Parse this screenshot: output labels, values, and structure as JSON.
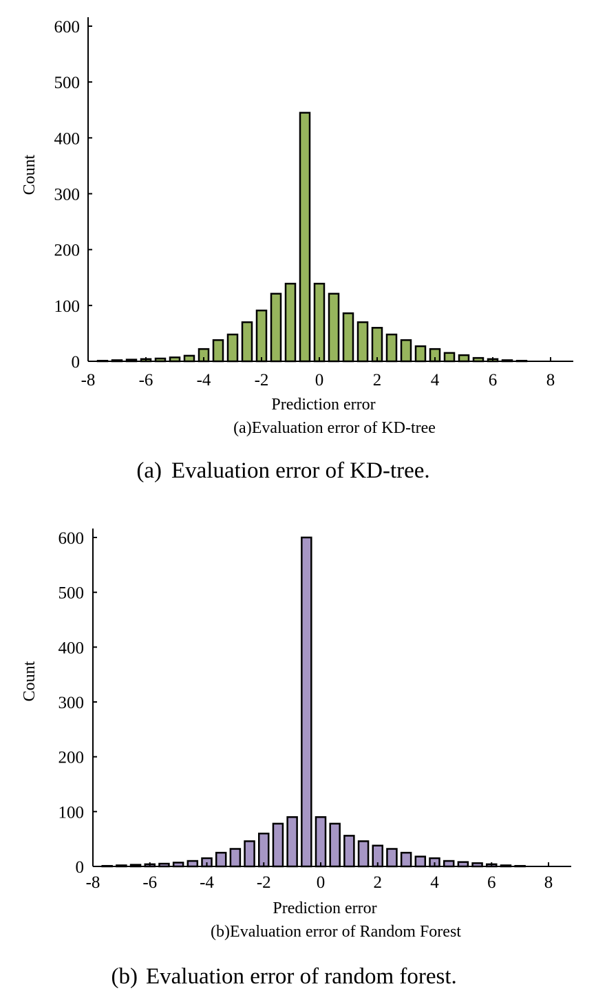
{
  "chart_data": [
    {
      "type": "bar",
      "caption": "(a)Evaluation error of KD-tree",
      "figure_caption": {
        "tag": "(a)",
        "text": "Evaluation error of KD-tree."
      },
      "xlabel": "Prediction error",
      "ylabel": "Count",
      "xlim": [
        -8,
        8
      ],
      "ylim": [
        0,
        600
      ],
      "xticks": [
        "-8",
        "-6",
        "-4",
        "-2",
        "0",
        "2",
        "4",
        "6",
        "8"
      ],
      "yticks": [
        "0",
        "100",
        "200",
        "300",
        "400",
        "500",
        "600"
      ],
      "bar_color": "#97b55d",
      "x": [
        -7.5,
        -7,
        -6.5,
        -6,
        -5.5,
        -5,
        -4.5,
        -4,
        -3.5,
        -3,
        -2.5,
        -2,
        -1.5,
        -1,
        -0.5,
        0,
        0.5,
        1,
        1.5,
        2,
        2.5,
        3,
        3.5,
        4,
        4.5,
        5,
        5.5,
        6,
        6.5,
        7,
        7.5,
        8
      ],
      "values": [
        1,
        2,
        3,
        4,
        5,
        7,
        10,
        22,
        38,
        48,
        70,
        91,
        121,
        139,
        445,
        139,
        121,
        86,
        70,
        60,
        48,
        38,
        27,
        22,
        15,
        11,
        6,
        4,
        2,
        1,
        0,
        0
      ]
    },
    {
      "type": "bar",
      "caption": "(b)Evaluation error of Random Forest",
      "figure_caption": {
        "tag": "(b)",
        "text": "Evaluation error of random forest."
      },
      "xlabel": "Prediction error",
      "ylabel": "Count",
      "xlim": [
        -8,
        8
      ],
      "ylim": [
        0,
        600
      ],
      "xticks": [
        "-8",
        "-6",
        "-4",
        "-2",
        "0",
        "2",
        "4",
        "6",
        "8"
      ],
      "yticks": [
        "0",
        "100",
        "200",
        "300",
        "400",
        "500",
        "600"
      ],
      "bar_color": "#a696c5",
      "x": [
        -7.5,
        -7,
        -6.5,
        -6,
        -5.5,
        -5,
        -4.5,
        -4,
        -3.5,
        -3,
        -2.5,
        -2,
        -1.5,
        -1,
        -0.5,
        0,
        0.5,
        1,
        1.5,
        2,
        2.5,
        3,
        3.5,
        4,
        4.5,
        5,
        5.5,
        6,
        6.5,
        7,
        7.5,
        8
      ],
      "values": [
        1,
        2,
        3,
        4,
        5,
        7,
        10,
        15,
        25,
        32,
        46,
        60,
        78,
        90,
        600,
        90,
        78,
        56,
        46,
        38,
        32,
        25,
        18,
        15,
        10,
        8,
        6,
        4,
        2,
        1,
        0,
        0
      ]
    }
  ]
}
